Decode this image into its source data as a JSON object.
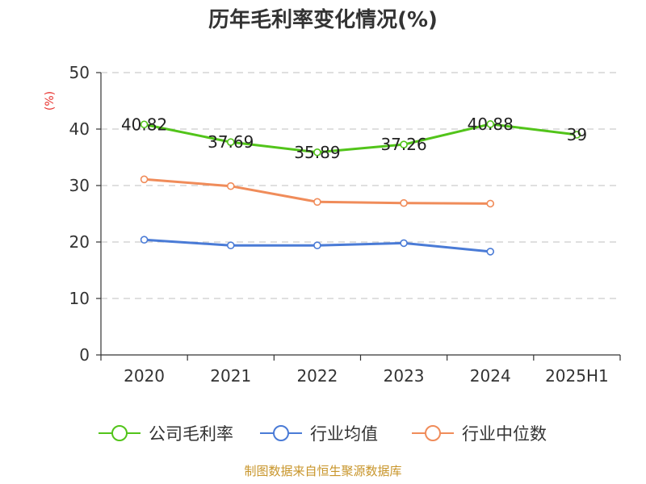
{
  "chart_data": {
    "type": "line",
    "title": "历年毛利率变化情况(%)",
    "ylabel": "(%)",
    "xlabel": "",
    "categories": [
      "2020",
      "2021",
      "2022",
      "2023",
      "2024",
      "2025H1"
    ],
    "yticks": [
      "0",
      "10",
      "20",
      "30",
      "40",
      "50"
    ],
    "ylim": [
      0,
      50
    ],
    "grid": "horizontal dashed",
    "legend_position": "bottom",
    "series": [
      {
        "name": "公司毛利率",
        "color": "#52c41a",
        "values": [
          40.82,
          37.69,
          35.89,
          37.26,
          40.88,
          39
        ],
        "labels": [
          "40.82",
          "37.69",
          "35.89",
          "37.26",
          "40.88",
          "39"
        ]
      },
      {
        "name": "行业均值",
        "color": "#4a7bd6",
        "values": [
          20.4,
          19.4,
          19.4,
          19.8,
          18.3,
          null
        ]
      },
      {
        "name": "行业中位数",
        "color": "#f08c5a",
        "values": [
          31.1,
          29.9,
          27.1,
          26.9,
          26.8,
          null
        ]
      }
    ]
  },
  "unit_color": "#e8332f",
  "source": {
    "text": "制图数据来自恒生聚源数据库",
    "color": "#c8952a"
  }
}
